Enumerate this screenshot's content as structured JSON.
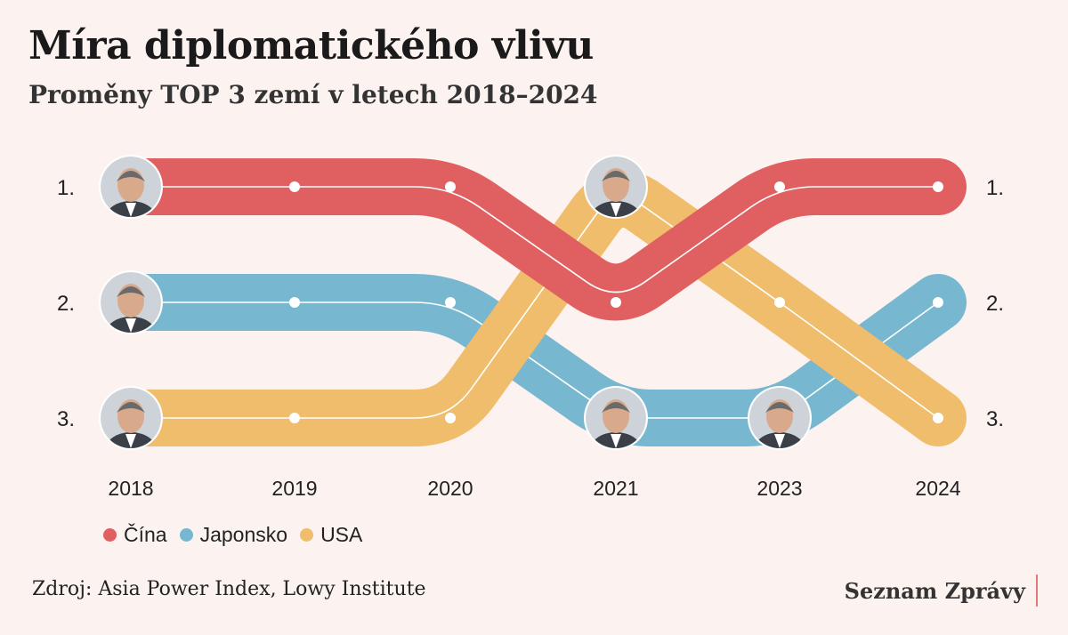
{
  "header": {
    "title": "Míra diplomatického vlivu",
    "subtitle": "Proměny TOP 3 zemí v letech 2018–2024"
  },
  "footer": {
    "source": "Zdroj: Asia Power Index, Lowy Institute",
    "brand": "Seznam Zprávy"
  },
  "colors": {
    "background": "#fcf3f1",
    "china": "#e06062",
    "japan": "#77b7d0",
    "usa": "#f0bd6c"
  },
  "chart_data": {
    "type": "line",
    "title": "Míra diplomatického vlivu",
    "subtitle": "Proměny TOP 3 zemí v letech 2018–2024",
    "x": [
      "2018",
      "2019",
      "2020",
      "2021",
      "2023",
      "2024"
    ],
    "rank_labels_left": [
      "1.",
      "2.",
      "3."
    ],
    "rank_labels_right": [
      "1.",
      "2.",
      "3."
    ],
    "ylim": [
      1,
      3
    ],
    "y_inverted": true,
    "series": [
      {
        "name": "Čína",
        "color": "#e06062",
        "values": [
          1,
          1,
          1,
          2,
          1,
          1
        ]
      },
      {
        "name": "Japonsko",
        "color": "#77b7d0",
        "values": [
          2,
          2,
          2,
          3,
          3,
          2
        ]
      },
      {
        "name": "USA",
        "color": "#f0bd6c",
        "values": [
          3,
          3,
          3,
          1,
          2,
          3
        ]
      }
    ],
    "portraits": [
      {
        "series": "Čína",
        "x": "2018",
        "icon": "leader-portrait-icon"
      },
      {
        "series": "Japonsko",
        "x": "2018",
        "icon": "leader-portrait-icon"
      },
      {
        "series": "USA",
        "x": "2018",
        "icon": "leader-portrait-icon"
      },
      {
        "series": "USA",
        "x": "2021",
        "icon": "leader-portrait-icon"
      },
      {
        "series": "Japonsko",
        "x": "2021",
        "icon": "leader-portrait-icon"
      },
      {
        "series": "Japonsko",
        "x": "2023",
        "icon": "leader-portrait-icon"
      }
    ],
    "legend": [
      "Čína",
      "Japonsko",
      "USA"
    ],
    "legend_position": "bottom-left",
    "grid": false
  }
}
